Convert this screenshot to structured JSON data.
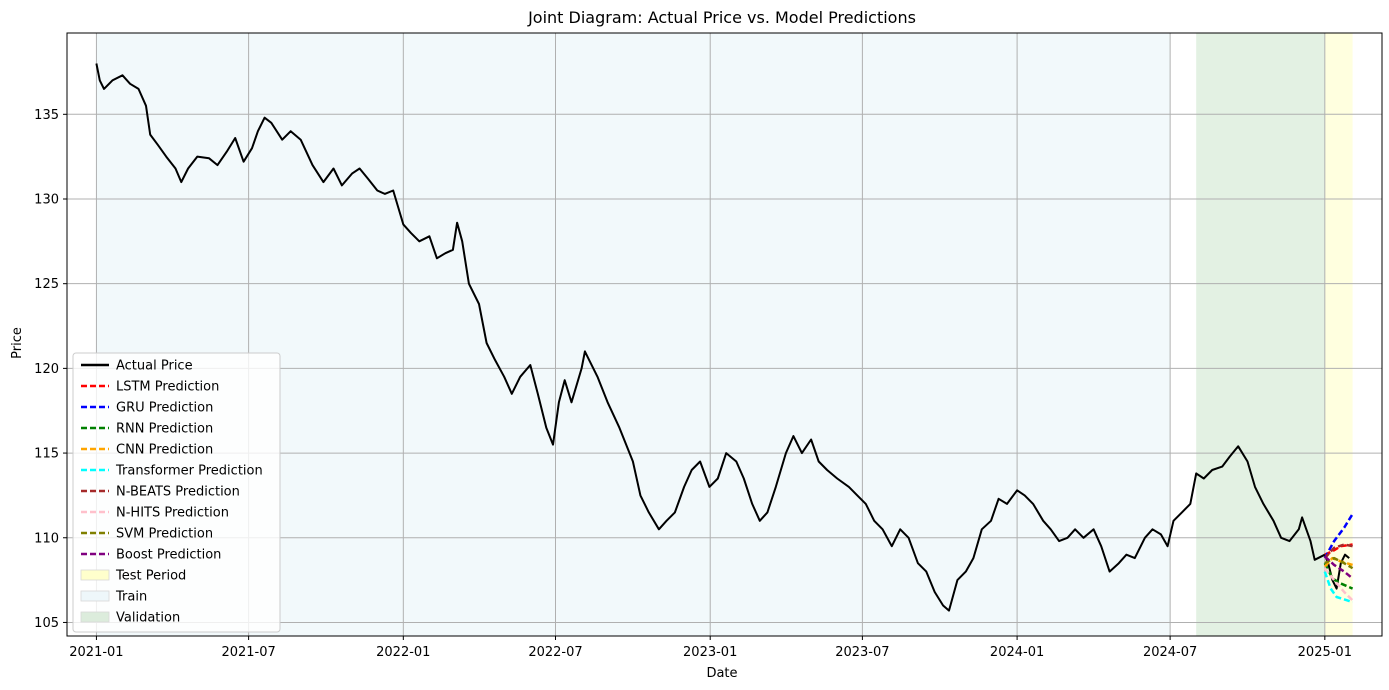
{
  "chart_data": {
    "type": "line",
    "title": "Joint Diagram: Actual Price vs. Model Predictions",
    "xlabel": "Date",
    "ylabel": "Price",
    "xlim": [
      "2020-11-27",
      "2025-03-10"
    ],
    "ylim": [
      104.2,
      139.8
    ],
    "grid": true,
    "legend_position": "lower-left",
    "x_ticks": [
      {
        "date": "2021-01-01",
        "label": "2021-01"
      },
      {
        "date": "2021-07-01",
        "label": "2021-07"
      },
      {
        "date": "2022-01-01",
        "label": "2022-01"
      },
      {
        "date": "2022-07-01",
        "label": "2022-07"
      },
      {
        "date": "2023-01-01",
        "label": "2023-01"
      },
      {
        "date": "2023-07-01",
        "label": "2023-07"
      },
      {
        "date": "2024-01-01",
        "label": "2024-01"
      },
      {
        "date": "2024-07-01",
        "label": "2024-07"
      },
      {
        "date": "2025-01-01",
        "label": "2025-01"
      }
    ],
    "y_ticks": [
      105,
      110,
      115,
      120,
      125,
      130,
      135
    ],
    "regions": [
      {
        "name": "Train",
        "start": "2021-01-01",
        "end": "2024-07-01",
        "color": "#add8e6",
        "opacity": 0.16
      },
      {
        "name": "Validation",
        "start": "2024-08-01",
        "end": "2025-01-01",
        "color": "#7fbf7f",
        "opacity": 0.22
      },
      {
        "name": "Test Period",
        "start": "2025-01-01",
        "end": "2025-02-03",
        "color": "#ffff80",
        "opacity": 0.25
      }
    ],
    "series": [
      {
        "name": "Actual Price",
        "color": "#000000",
        "dash": false,
        "points": [
          [
            "2021-01-01",
            138.0
          ],
          [
            "2021-01-05",
            137.0
          ],
          [
            "2021-01-10",
            136.5
          ],
          [
            "2021-01-20",
            137.0
          ],
          [
            "2021-02-01",
            137.3
          ],
          [
            "2021-02-10",
            136.8
          ],
          [
            "2021-02-20",
            136.5
          ],
          [
            "2021-03-01",
            135.5
          ],
          [
            "2021-03-06",
            133.8
          ],
          [
            "2021-03-15",
            133.2
          ],
          [
            "2021-03-25",
            132.5
          ],
          [
            "2021-04-05",
            131.8
          ],
          [
            "2021-04-12",
            131.0
          ],
          [
            "2021-04-20",
            131.8
          ],
          [
            "2021-05-01",
            132.5
          ],
          [
            "2021-05-15",
            132.4
          ],
          [
            "2021-05-25",
            132.0
          ],
          [
            "2021-06-05",
            132.8
          ],
          [
            "2021-06-15",
            133.6
          ],
          [
            "2021-06-25",
            132.2
          ],
          [
            "2021-07-05",
            133.0
          ],
          [
            "2021-07-12",
            134.0
          ],
          [
            "2021-07-20",
            134.8
          ],
          [
            "2021-07-28",
            134.5
          ],
          [
            "2021-08-10",
            133.5
          ],
          [
            "2021-08-20",
            134.0
          ],
          [
            "2021-09-01",
            133.5
          ],
          [
            "2021-09-15",
            132.0
          ],
          [
            "2021-09-28",
            131.0
          ],
          [
            "2021-10-10",
            131.8
          ],
          [
            "2021-10-20",
            130.8
          ],
          [
            "2021-11-01",
            131.5
          ],
          [
            "2021-11-10",
            131.8
          ],
          [
            "2021-11-20",
            131.2
          ],
          [
            "2021-12-01",
            130.5
          ],
          [
            "2021-12-10",
            130.3
          ],
          [
            "2021-12-20",
            130.5
          ],
          [
            "2022-01-01",
            128.5
          ],
          [
            "2022-01-10",
            128.0
          ],
          [
            "2022-01-20",
            127.5
          ],
          [
            "2022-02-01",
            127.8
          ],
          [
            "2022-02-10",
            126.5
          ],
          [
            "2022-02-20",
            126.8
          ],
          [
            "2022-03-01",
            127.0
          ],
          [
            "2022-03-06",
            128.6
          ],
          [
            "2022-03-12",
            127.5
          ],
          [
            "2022-03-20",
            125.0
          ],
          [
            "2022-04-01",
            123.8
          ],
          [
            "2022-04-10",
            121.5
          ],
          [
            "2022-04-20",
            120.5
          ],
          [
            "2022-05-01",
            119.5
          ],
          [
            "2022-05-10",
            118.5
          ],
          [
            "2022-05-20",
            119.5
          ],
          [
            "2022-06-01",
            120.2
          ],
          [
            "2022-06-10",
            118.5
          ],
          [
            "2022-06-20",
            116.5
          ],
          [
            "2022-06-28",
            115.5
          ],
          [
            "2022-07-05",
            118.0
          ],
          [
            "2022-07-12",
            119.3
          ],
          [
            "2022-07-20",
            118.0
          ],
          [
            "2022-08-01",
            120.0
          ],
          [
            "2022-08-05",
            121.0
          ],
          [
            "2022-08-10",
            120.5
          ],
          [
            "2022-08-20",
            119.5
          ],
          [
            "2022-09-01",
            118.0
          ],
          [
            "2022-09-15",
            116.5
          ],
          [
            "2022-10-01",
            114.5
          ],
          [
            "2022-10-10",
            112.5
          ],
          [
            "2022-10-20",
            111.5
          ],
          [
            "2022-11-01",
            110.5
          ],
          [
            "2022-11-10",
            111.0
          ],
          [
            "2022-11-20",
            111.5
          ],
          [
            "2022-12-01",
            113.0
          ],
          [
            "2022-12-10",
            114.0
          ],
          [
            "2022-12-20",
            114.5
          ],
          [
            "2022-12-31",
            113.0
          ],
          [
            "2023-01-10",
            113.5
          ],
          [
            "2023-01-20",
            115.0
          ],
          [
            "2023-02-01",
            114.5
          ],
          [
            "2023-02-10",
            113.5
          ],
          [
            "2023-02-20",
            112.0
          ],
          [
            "2023-03-01",
            111.0
          ],
          [
            "2023-03-10",
            111.5
          ],
          [
            "2023-03-20",
            113.0
          ],
          [
            "2023-04-01",
            115.0
          ],
          [
            "2023-04-10",
            116.0
          ],
          [
            "2023-04-20",
            115.0
          ],
          [
            "2023-05-01",
            115.8
          ],
          [
            "2023-05-10",
            114.5
          ],
          [
            "2023-05-20",
            114.0
          ],
          [
            "2023-06-01",
            113.5
          ],
          [
            "2023-06-15",
            113.0
          ],
          [
            "2023-06-25",
            112.5
          ],
          [
            "2023-07-05",
            112.0
          ],
          [
            "2023-07-15",
            111.0
          ],
          [
            "2023-07-25",
            110.5
          ],
          [
            "2023-08-05",
            109.5
          ],
          [
            "2023-08-15",
            110.5
          ],
          [
            "2023-08-25",
            110.0
          ],
          [
            "2023-09-05",
            108.5
          ],
          [
            "2023-09-15",
            108.0
          ],
          [
            "2023-09-25",
            106.8
          ],
          [
            "2023-10-05",
            106.0
          ],
          [
            "2023-10-12",
            105.7
          ],
          [
            "2023-10-22",
            107.5
          ],
          [
            "2023-11-01",
            108.0
          ],
          [
            "2023-11-10",
            108.8
          ],
          [
            "2023-11-20",
            110.5
          ],
          [
            "2023-12-01",
            111.0
          ],
          [
            "2023-12-10",
            112.3
          ],
          [
            "2023-12-20",
            112.0
          ],
          [
            "2024-01-01",
            112.8
          ],
          [
            "2024-01-10",
            112.5
          ],
          [
            "2024-01-20",
            112.0
          ],
          [
            "2024-02-01",
            111.0
          ],
          [
            "2024-02-10",
            110.5
          ],
          [
            "2024-02-20",
            109.8
          ],
          [
            "2024-03-01",
            110.0
          ],
          [
            "2024-03-10",
            110.5
          ],
          [
            "2024-03-20",
            110.0
          ],
          [
            "2024-04-01",
            110.5
          ],
          [
            "2024-04-10",
            109.5
          ],
          [
            "2024-04-20",
            108.0
          ],
          [
            "2024-05-01",
            108.5
          ],
          [
            "2024-05-10",
            109.0
          ],
          [
            "2024-05-20",
            108.8
          ],
          [
            "2024-06-01",
            110.0
          ],
          [
            "2024-06-10",
            110.5
          ],
          [
            "2024-06-20",
            110.2
          ],
          [
            "2024-06-28",
            109.5
          ],
          [
            "2024-07-05",
            111.0
          ],
          [
            "2024-07-15",
            111.5
          ],
          [
            "2024-07-25",
            112.0
          ],
          [
            "2024-08-01",
            113.8
          ],
          [
            "2024-08-10",
            113.5
          ],
          [
            "2024-08-20",
            114.0
          ],
          [
            "2024-09-01",
            114.2
          ],
          [
            "2024-09-10",
            114.8
          ],
          [
            "2024-09-20",
            115.4
          ],
          [
            "2024-10-01",
            114.5
          ],
          [
            "2024-10-10",
            113.0
          ],
          [
            "2024-10-20",
            112.0
          ],
          [
            "2024-11-01",
            111.0
          ],
          [
            "2024-11-10",
            110.0
          ],
          [
            "2024-11-20",
            109.8
          ],
          [
            "2024-12-01",
            110.5
          ],
          [
            "2024-12-05",
            111.2
          ],
          [
            "2024-12-10",
            110.5
          ],
          [
            "2024-12-15",
            109.8
          ],
          [
            "2024-12-20",
            108.7
          ],
          [
            "2025-01-01",
            109.0
          ],
          [
            "2025-01-05",
            108.5
          ],
          [
            "2025-01-10",
            107.5
          ],
          [
            "2025-01-15",
            107.0
          ],
          [
            "2025-01-20",
            108.5
          ],
          [
            "2025-01-25",
            109.0
          ],
          [
            "2025-01-30",
            108.8
          ]
        ]
      },
      {
        "name": "LSTM Prediction",
        "color": "#ff0000",
        "dash": true,
        "points": [
          [
            "2025-01-01",
            109.0
          ],
          [
            "2025-01-10",
            109.2
          ],
          [
            "2025-01-20",
            109.5
          ],
          [
            "2025-02-03",
            109.6
          ]
        ]
      },
      {
        "name": "GRU Prediction",
        "color": "#0000ff",
        "dash": true,
        "points": [
          [
            "2025-01-01",
            108.8
          ],
          [
            "2025-01-12",
            109.8
          ],
          [
            "2025-01-24",
            110.6
          ],
          [
            "2025-02-03",
            111.4
          ]
        ]
      },
      {
        "name": "RNN Prediction",
        "color": "#008000",
        "dash": true,
        "points": [
          [
            "2025-01-01",
            108.5
          ],
          [
            "2025-01-10",
            107.6
          ],
          [
            "2025-01-20",
            107.3
          ],
          [
            "2025-02-03",
            107.0
          ]
        ]
      },
      {
        "name": "CNN Prediction",
        "color": "#ffa500",
        "dash": true,
        "points": [
          [
            "2025-01-01",
            108.3
          ],
          [
            "2025-01-10",
            108.8
          ],
          [
            "2025-01-20",
            108.6
          ],
          [
            "2025-02-03",
            108.4
          ]
        ]
      },
      {
        "name": "Transformer Prediction",
        "color": "#00ffff",
        "dash": true,
        "points": [
          [
            "2025-01-01",
            108.0
          ],
          [
            "2025-01-08",
            107.0
          ],
          [
            "2025-01-15",
            106.5
          ],
          [
            "2025-02-03",
            106.2
          ]
        ]
      },
      {
        "name": "N-BEATS Prediction",
        "color": "#a52a2a",
        "dash": true,
        "points": [
          [
            "2025-01-01",
            108.8
          ],
          [
            "2025-01-12",
            109.4
          ],
          [
            "2025-01-24",
            109.6
          ],
          [
            "2025-02-03",
            109.5
          ]
        ]
      },
      {
        "name": "N-HITS Prediction",
        "color": "#ffc0cb",
        "dash": true,
        "points": [
          [
            "2025-01-01",
            108.2
          ],
          [
            "2025-01-12",
            107.5
          ],
          [
            "2025-01-24",
            106.8
          ],
          [
            "2025-02-03",
            106.3
          ]
        ]
      },
      {
        "name": "SVM Prediction",
        "color": "#808000",
        "dash": true,
        "points": [
          [
            "2025-01-01",
            108.5
          ],
          [
            "2025-01-12",
            108.8
          ],
          [
            "2025-01-24",
            108.5
          ],
          [
            "2025-02-03",
            108.2
          ]
        ]
      },
      {
        "name": "Boost Prediction",
        "color": "#800080",
        "dash": true,
        "points": [
          [
            "2025-01-01",
            108.9
          ],
          [
            "2025-01-12",
            108.4
          ],
          [
            "2025-01-24",
            108.0
          ],
          [
            "2025-02-03",
            107.6
          ]
        ]
      }
    ],
    "legend": [
      {
        "label": "Actual Price",
        "kind": "line",
        "color": "#000000",
        "dash": false
      },
      {
        "label": "LSTM Prediction",
        "kind": "line",
        "color": "#ff0000",
        "dash": true
      },
      {
        "label": "GRU Prediction",
        "kind": "line",
        "color": "#0000ff",
        "dash": true
      },
      {
        "label": "RNN Prediction",
        "kind": "line",
        "color": "#008000",
        "dash": true
      },
      {
        "label": "CNN Prediction",
        "kind": "line",
        "color": "#ffa500",
        "dash": true
      },
      {
        "label": "Transformer Prediction",
        "kind": "line",
        "color": "#00ffff",
        "dash": true
      },
      {
        "label": "N-BEATS Prediction",
        "kind": "line",
        "color": "#a52a2a",
        "dash": true
      },
      {
        "label": "N-HITS Prediction",
        "kind": "line",
        "color": "#ffc0cb",
        "dash": true
      },
      {
        "label": "SVM Prediction",
        "kind": "line",
        "color": "#808000",
        "dash": true
      },
      {
        "label": "Boost Prediction",
        "kind": "line",
        "color": "#800080",
        "dash": true
      },
      {
        "label": "Test Period",
        "kind": "patch",
        "color": "#ffffcc"
      },
      {
        "label": "Train",
        "kind": "patch",
        "color": "#eef7fa"
      },
      {
        "label": "Validation",
        "kind": "patch",
        "color": "#dcecdc"
      }
    ]
  }
}
